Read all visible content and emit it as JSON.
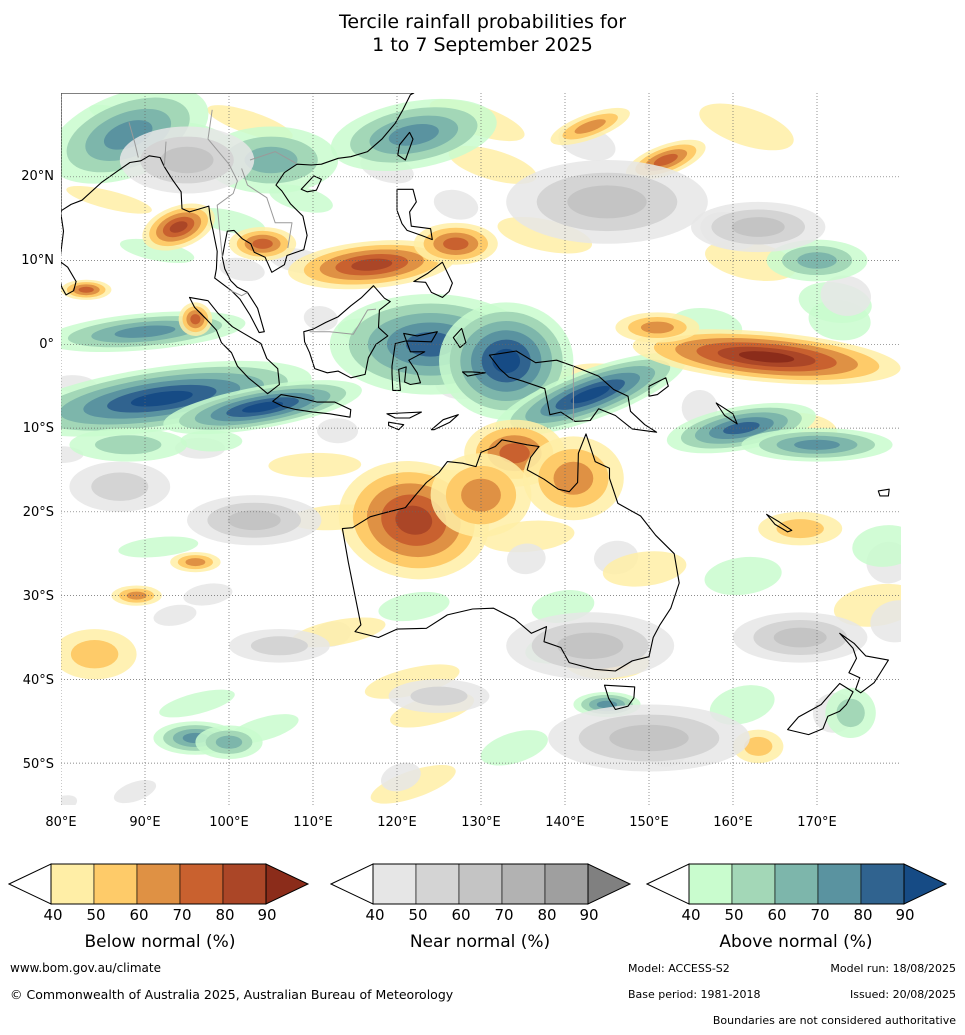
{
  "title": {
    "line1": "Tercile rainfall probabilities for",
    "line2": "1 to 7 September 2025"
  },
  "map": {
    "lat_labels": [
      "20°N",
      "10°N",
      "0°",
      "10°S",
      "20°S",
      "30°S",
      "40°S",
      "50°S"
    ],
    "lon_labels": [
      "80°E",
      "90°E",
      "100°E",
      "110°E",
      "120°E",
      "130°E",
      "140°E",
      "150°E",
      "160°E",
      "170°E"
    ],
    "extent": {
      "lon_min": 80,
      "lon_max": 180,
      "lat_min": -55,
      "lat_max": 30
    },
    "colors": {
      "coast": "#000000",
      "border": "#9a9a9a",
      "grid": "#666666",
      "background": "#ffffff"
    }
  },
  "colorbars": {
    "ticks": [
      "40",
      "50",
      "60",
      "70",
      "80",
      "90"
    ],
    "below": {
      "title": "Below normal (%)",
      "colors": [
        "#ffeea6",
        "#fecb69",
        "#df9144",
        "#c9612f",
        "#ab4627",
        "#8b2c1a"
      ]
    },
    "near": {
      "title": "Near normal (%)",
      "colors": [
        "#e6e6e6",
        "#d4d4d4",
        "#c4c4c4",
        "#b2b2b2",
        "#9f9f9f",
        "#808080"
      ]
    },
    "above": {
      "title": "Above normal (%)",
      "colors": [
        "#c9fcce",
        "#a3d7b7",
        "#7db6ab",
        "#5a93a0",
        "#30638f",
        "#164b85"
      ]
    }
  },
  "footer": {
    "website": "www.bom.gov.au/climate",
    "copyright": "© Commonwealth of Australia 2025, Australian Bureau of Meteorology",
    "model": "Model: ACCESS-S2",
    "model_run": "Model run: 18/08/2025",
    "base_period": "Base period: 1981-2018",
    "issued": "Issued: 20/08/2025",
    "disclaimer": "Boundaries are not considered authoritative"
  }
}
